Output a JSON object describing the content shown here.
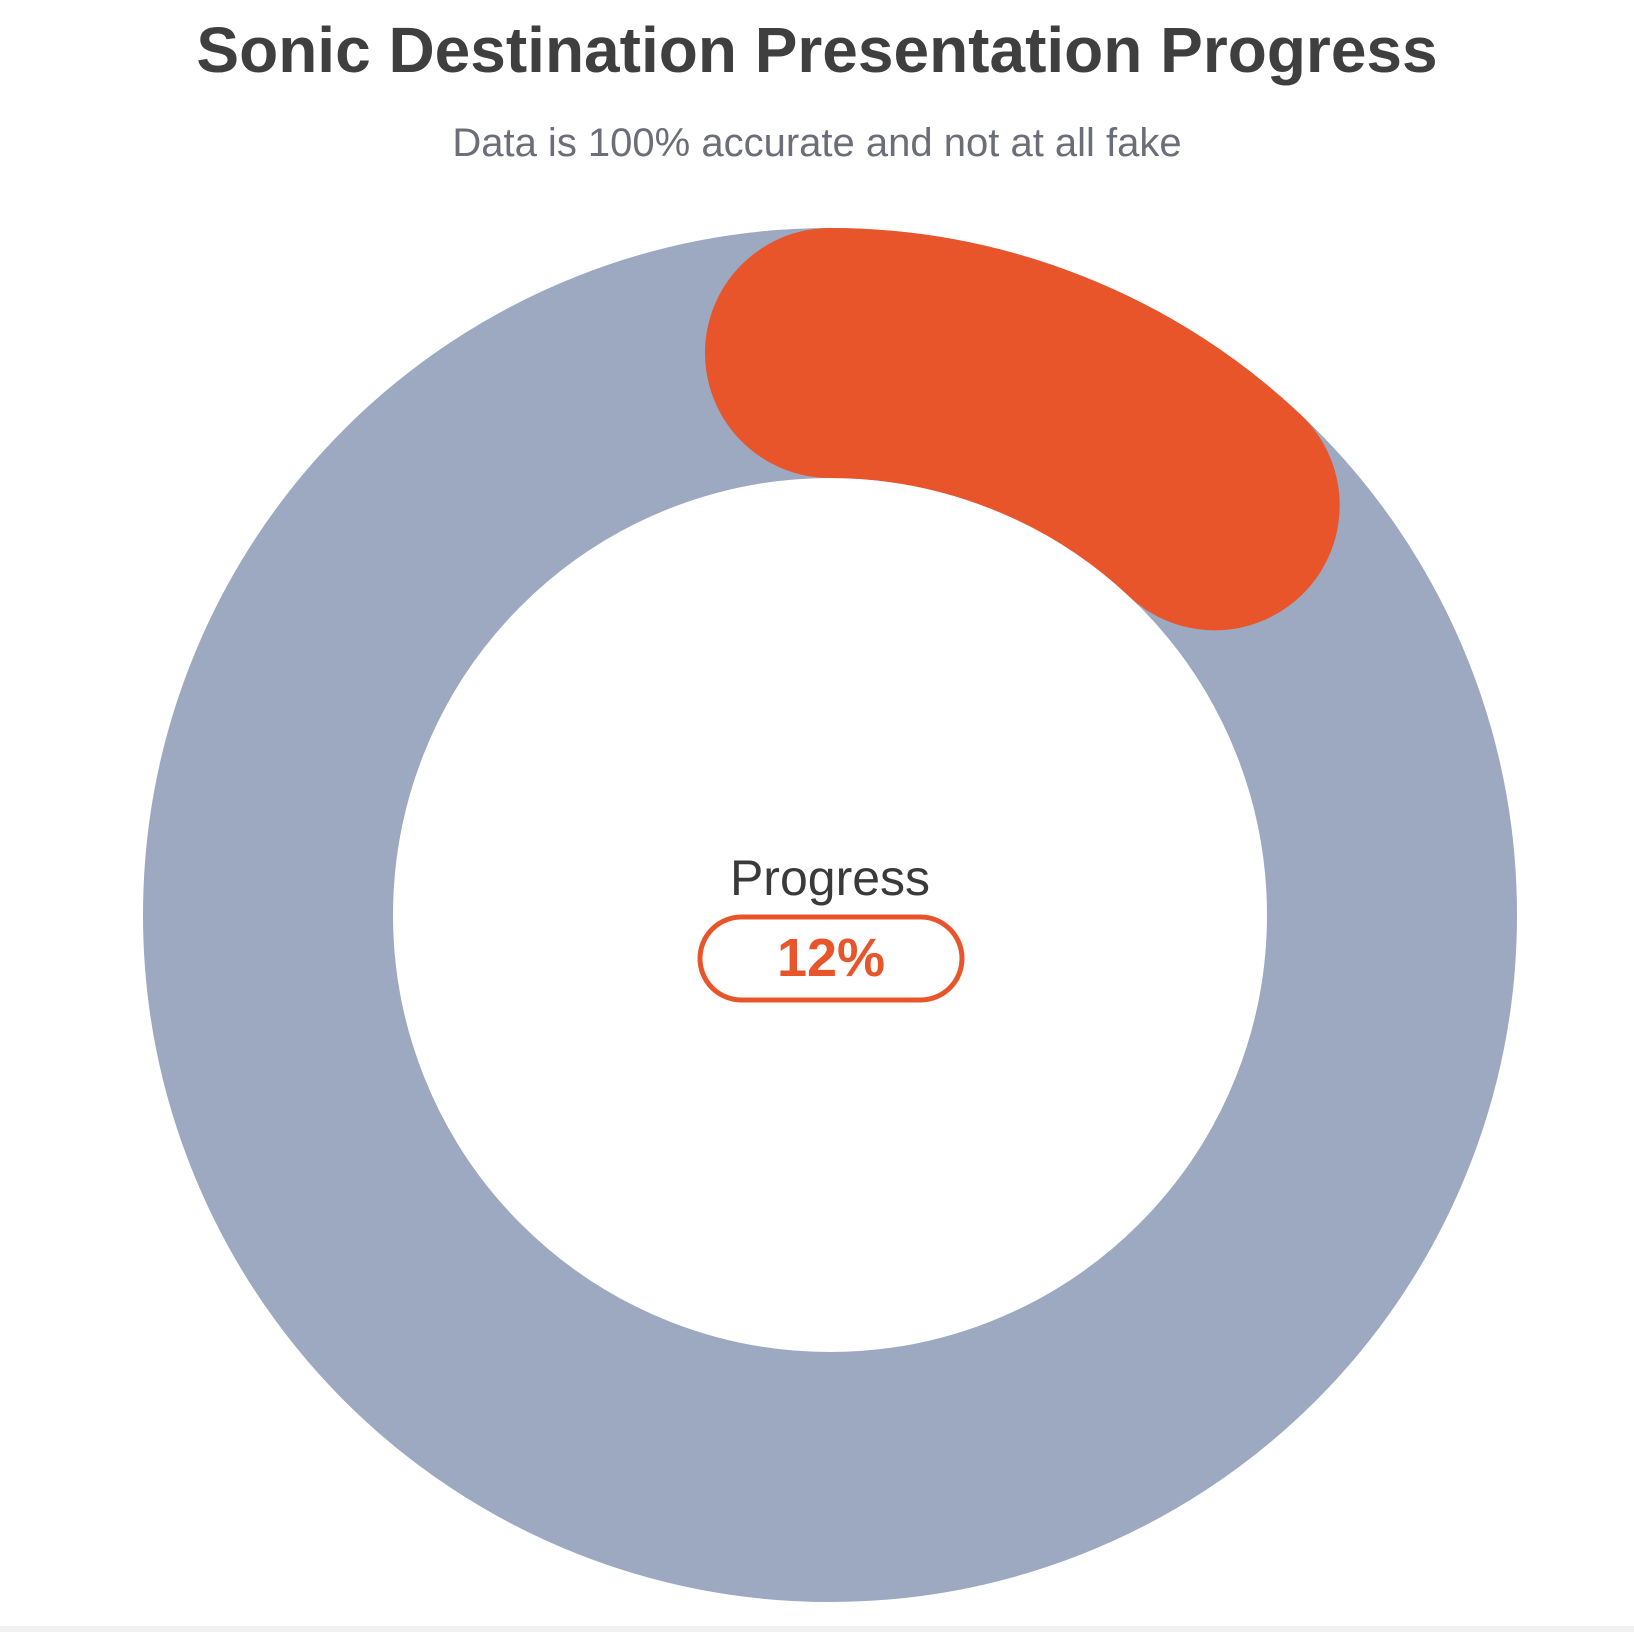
{
  "chart_data": {
    "type": "pie",
    "title": "Sonic Destination Presentation Progress",
    "subtitle": "Data is 100% accurate and not at all fake",
    "center_label": "Progress",
    "center_value_text": "12%",
    "value_percent": 12,
    "colors": {
      "progress": "#e9552b",
      "track": "#9ca9c1",
      "title": "#3f3f3f",
      "subtitle": "#6b6e78",
      "label": "#3a3a3a"
    }
  }
}
